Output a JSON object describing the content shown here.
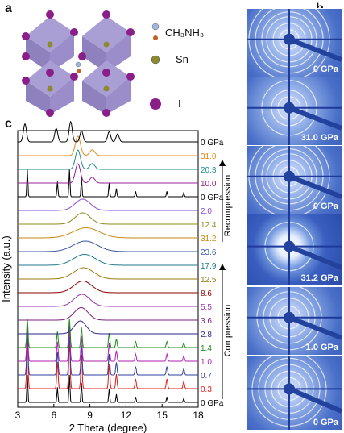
{
  "panels": {
    "a": "a",
    "b": "b",
    "c": "c"
  },
  "legend": [
    {
      "label": "CH₃NH₃",
      "color": "#9fb7dc"
    },
    {
      "label": "Sn",
      "color": "#8c8a2e"
    },
    {
      "label": "I",
      "color": "#8a1f8a"
    }
  ],
  "xrd_panels": [
    {
      "label": "0 GPa"
    },
    {
      "label": "31.0 GPa"
    },
    {
      "label": "0 GPa"
    },
    {
      "label": "31.2 GPa"
    },
    {
      "label": "1.0 GPa"
    },
    {
      "label": "0 GPa"
    }
  ],
  "chart_data": {
    "type": "line",
    "xlabel": "2 Theta (degree)",
    "ylabel": "Intensity (a.u.)",
    "xlim": [
      3,
      18
    ],
    "xticks": [
      3,
      6,
      9,
      12,
      15,
      18
    ],
    "series": [
      {
        "name": "0 GPa",
        "color": "#000000",
        "group": "bottom"
      },
      {
        "name": "0.3",
        "color": "#e41a1c",
        "group": "compression"
      },
      {
        "name": "0.7",
        "color": "#2c3e9e",
        "group": "compression"
      },
      {
        "name": "1.0",
        "color": "#b21fb2",
        "group": "compression"
      },
      {
        "name": "1.4",
        "color": "#1e8a1e",
        "group": "compression"
      },
      {
        "name": "2.8",
        "color": "#2a2a8a",
        "group": "compression"
      },
      {
        "name": "3.6",
        "color": "#7a1f7a",
        "group": "compression"
      },
      {
        "name": "5.5",
        "color": "#9b2fb0",
        "group": "compression"
      },
      {
        "name": "8.6",
        "color": "#8b0000",
        "group": "compression"
      },
      {
        "name": "12.5",
        "color": "#9a7a10",
        "group": "compression"
      },
      {
        "name": "17.9",
        "color": "#1f7a8a",
        "group": "compression"
      },
      {
        "name": "23.6",
        "color": "#3a5aa0",
        "group": "compression"
      },
      {
        "name": "31.2",
        "color": "#c58a10",
        "group": "compression"
      },
      {
        "name": "12.4",
        "color": "#8a8a1a",
        "group": "decompression"
      },
      {
        "name": "2.0",
        "color": "#8a4ad0",
        "group": "decompression"
      },
      {
        "name": "0 GPa",
        "color": "#000000",
        "group": "decompression"
      },
      {
        "name": "10.0",
        "color": "#9b1f9b",
        "group": "recompression"
      },
      {
        "name": "20.3",
        "color": "#1f8a8a",
        "group": "recompression"
      },
      {
        "name": "31.0",
        "color": "#e8891a",
        "group": "recompression"
      },
      {
        "name": "0 GPa",
        "color": "#000000",
        "group": "top"
      }
    ],
    "annotations": [
      "Compression",
      "Recompression"
    ]
  }
}
